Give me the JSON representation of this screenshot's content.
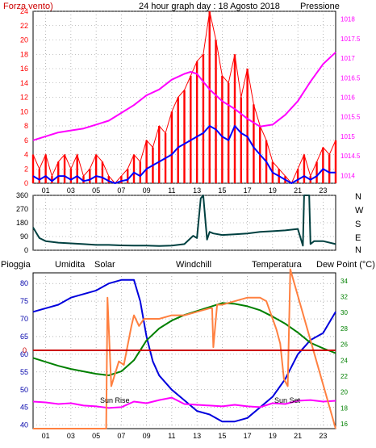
{
  "colors": {
    "wind": "#ff0000",
    "wind_gust": "#0000ff",
    "pressure": "#ff00ff",
    "wind_dir": "#004040",
    "rain": "#cc0000",
    "humidity": "#0000dd",
    "solar": "#ff8040",
    "windchill": "#008080",
    "temperature": "#008000",
    "dew_point": "#ff00ff",
    "frame": "#000000",
    "title": "#0000aa"
  },
  "top": {
    "title": "24 hour graph day : 18 Agosto 2018",
    "left_label": "Forza vento)",
    "right_label": "Pressione"
  },
  "bottom": {
    "label_rain": "Pioggia",
    "label_humidity": "Umidita",
    "label_solar": "Solar",
    "label_windchill": "Windchill",
    "label_temperature": "Temperatura",
    "label_dew_point": "Dew Point (°C)",
    "sunrise_label": "Sun Rise",
    "sunset_label": "Sun Set"
  },
  "chart_data": [
    {
      "type": "line",
      "name": "wind-pressure",
      "x_ticks": [
        "01",
        "03",
        "05",
        "07",
        "09",
        "11",
        "13",
        "15",
        "17",
        "19",
        "21",
        "23"
      ],
      "xlim": [
        0,
        24
      ],
      "y_left": {
        "label": "Forza vento)",
        "ticks": [
          "0",
          "2",
          "4",
          "6",
          "8",
          "10",
          "12",
          "14",
          "16",
          "18",
          "20",
          "22",
          "24"
        ],
        "range": [
          0,
          24
        ]
      },
      "y_right": {
        "label": "Pressione",
        "ticks": [
          "1014",
          "1014.5",
          "1015",
          "1015.5",
          "1016",
          "1016.5",
          "1017",
          "1017.5",
          "1018"
        ],
        "range": [
          1013.8,
          1018.2
        ]
      },
      "series": [
        {
          "name": "wind",
          "axis": "left",
          "style": "spikes",
          "x": [
            0,
            0.5,
            1,
            1.5,
            2,
            2.5,
            3,
            3.5,
            4,
            4.5,
            5,
            5.5,
            6,
            6.5,
            7,
            7.5,
            8,
            8.5,
            9,
            9.5,
            10,
            10.5,
            11,
            11.5,
            12,
            12.5,
            13,
            13.5,
            14,
            14.5,
            15,
            15.5,
            16,
            16.5,
            17,
            17.5,
            18,
            18.5,
            19,
            19.5,
            20,
            20.5,
            21,
            21.5,
            22,
            22.5,
            23,
            23.5,
            24
          ],
          "y": [
            4,
            2,
            4,
            1,
            3,
            4,
            2,
            4,
            1,
            2,
            4,
            3,
            1,
            0,
            1,
            2,
            4,
            3,
            6,
            5,
            8,
            7,
            10,
            12,
            13,
            15,
            17,
            18,
            24,
            20,
            15,
            14,
            18,
            12,
            16,
            11,
            8,
            6,
            3,
            2,
            1,
            0,
            2,
            4,
            1,
            3,
            5,
            4,
            6
          ]
        },
        {
          "name": "wind_gust",
          "axis": "left",
          "x": [
            0,
            0.5,
            1,
            1.5,
            2,
            2.5,
            3,
            3.5,
            4,
            4.5,
            5,
            5.5,
            6,
            6.5,
            7,
            7.5,
            8,
            8.5,
            9,
            9.5,
            10,
            10.5,
            11,
            11.5,
            12,
            12.5,
            13,
            13.5,
            14,
            14.5,
            15,
            15.5,
            16,
            16.5,
            17,
            17.5,
            18,
            18.5,
            19,
            19.5,
            20,
            20.5,
            21,
            21.5,
            22,
            22.5,
            23,
            23.5,
            24
          ],
          "y": [
            1,
            0.5,
            1,
            0.3,
            1,
            1,
            0.5,
            1,
            0.3,
            0.5,
            1,
            0.8,
            0.3,
            0,
            0.3,
            0.5,
            1.5,
            1,
            2,
            2.5,
            3,
            3.5,
            4,
            5,
            5.5,
            6,
            6.5,
            7,
            8,
            7.5,
            6.5,
            6,
            8,
            7,
            6.5,
            5,
            4,
            3,
            1.5,
            1,
            0.5,
            0,
            0.5,
            1,
            0.5,
            1,
            2,
            1.5,
            1.5
          ]
        },
        {
          "name": "pressure",
          "axis": "right",
          "x": [
            0,
            1,
            2,
            3,
            4,
            5,
            6,
            7,
            8,
            9,
            10,
            11,
            12,
            12.5,
            13,
            13.5,
            14,
            15,
            16,
            17,
            18,
            19,
            20,
            21,
            22,
            23,
            24
          ],
          "y": [
            1014.9,
            1015,
            1015.1,
            1015.15,
            1015.2,
            1015.3,
            1015.4,
            1015.6,
            1015.8,
            1016.05,
            1016.2,
            1016.45,
            1016.6,
            1016.65,
            1016.6,
            1016.4,
            1016.2,
            1015.9,
            1015.7,
            1015.45,
            1015.25,
            1015.3,
            1015.55,
            1015.9,
            1016.4,
            1016.85,
            1017.15
          ]
        }
      ]
    },
    {
      "type": "line",
      "name": "wind-direction",
      "xlim": [
        0,
        24
      ],
      "y_left": {
        "ticks": [
          "0",
          "90",
          "180",
          "270",
          "360"
        ],
        "range": [
          0,
          360
        ]
      },
      "y_right_labels": [
        "N",
        "W",
        "S",
        "E",
        "N"
      ],
      "series": [
        {
          "name": "wind_direction",
          "x": [
            0,
            0.5,
            1,
            2,
            3,
            4,
            5,
            6,
            7,
            8,
            9,
            10,
            11,
            12,
            12.7,
            13,
            13.3,
            13.5,
            13.8,
            14,
            14.3,
            15,
            16,
            17,
            18,
            19,
            20,
            21,
            21.4,
            21.5,
            21.9,
            22,
            22.3,
            23,
            24
          ],
          "y": [
            150,
            80,
            60,
            50,
            45,
            40,
            35,
            35,
            32,
            30,
            30,
            28,
            30,
            40,
            95,
            80,
            340,
            360,
            70,
            120,
            110,
            100,
            105,
            110,
            120,
            125,
            130,
            140,
            30,
            360,
            360,
            40,
            60,
            60,
            40
          ]
        }
      ]
    },
    {
      "type": "line",
      "name": "humidity-temperature",
      "x_ticks": [
        "01",
        "03",
        "05",
        "07",
        "09",
        "11",
        "13",
        "15",
        "17",
        "19",
        "21",
        "23"
      ],
      "xlim": [
        0,
        24
      ],
      "y_left": {
        "label": "Pioggia",
        "ticks": [
          "40",
          "45",
          "50",
          "55",
          "60",
          "65",
          "70",
          "75",
          "80"
        ],
        "range": [
          39,
          83
        ]
      },
      "y_right": {
        "label": "Dew Point (°C)",
        "ticks": [
          "16",
          "18",
          "20",
          "22",
          "24",
          "26",
          "28",
          "30",
          "32",
          "34"
        ],
        "range": [
          15.4,
          35
        ]
      },
      "rain_zero_label": "0",
      "series": [
        {
          "name": "humidity",
          "axis": "left",
          "x": [
            0,
            1,
            2,
            3,
            4,
            5,
            6,
            7,
            8,
            8.5,
            9,
            9.5,
            10,
            11,
            12,
            13,
            14,
            15,
            16,
            17,
            18,
            19,
            20,
            21,
            22,
            23,
            24
          ],
          "y": [
            72,
            73,
            74,
            76,
            77,
            78,
            80,
            81,
            81,
            75,
            65,
            58,
            54,
            50,
            47,
            44,
            43,
            41,
            41,
            42,
            45,
            48,
            53,
            60,
            64,
            66,
            72
          ]
        },
        {
          "name": "temperature",
          "axis": "right",
          "x": [
            0,
            1,
            2,
            3,
            4,
            5,
            6,
            7,
            8,
            9,
            10,
            11,
            12,
            13,
            14,
            15,
            16,
            17,
            18,
            19,
            20,
            21,
            22,
            23,
            24
          ],
          "y": [
            24.3,
            23.8,
            23.3,
            22.9,
            22.6,
            22.3,
            22.1,
            22.6,
            24,
            26.5,
            28,
            29,
            29.7,
            30.2,
            30.7,
            31.2,
            31.1,
            30.8,
            30.3,
            29.5,
            28.6,
            27.5,
            26.2,
            25.5,
            24.9
          ]
        },
        {
          "name": "dew_point",
          "axis": "right",
          "x": [
            0,
            1,
            2,
            3,
            4,
            5,
            6,
            7,
            8,
            9,
            10,
            11,
            12,
            13,
            14,
            15,
            16,
            17,
            18,
            19,
            20,
            21,
            22,
            23,
            24
          ],
          "y": [
            18.8,
            18.7,
            18.5,
            18.6,
            18.3,
            18.2,
            18,
            18.1,
            18.8,
            18.6,
            19,
            19.3,
            18.5,
            18.4,
            18.3,
            18.2,
            18.4,
            18.2,
            18.1,
            18.6,
            18.5,
            18.9,
            19,
            18.8,
            18.9
          ]
        },
        {
          "name": "solar",
          "axis": "left",
          "x": [
            0,
            5.8,
            5.9,
            6.2,
            6.8,
            7.2,
            7.8,
            8,
            8.4,
            8.8,
            9.5,
            10,
            11,
            12,
            13,
            14,
            14.2,
            14.3,
            14.6,
            15,
            16,
            17,
            18,
            18.5,
            19,
            19.3,
            19.6,
            19.9,
            20.2,
            20.4,
            24
          ],
          "y": [
            39,
            39,
            76,
            51,
            58,
            57,
            68,
            71,
            68,
            70,
            70,
            70,
            71,
            71,
            72,
            73,
            73,
            62,
            74,
            74,
            75,
            76,
            76,
            75,
            70,
            67,
            63,
            53,
            51,
            84,
            39
          ]
        }
      ],
      "annotations": [
        "Sun Rise",
        "Sun Set"
      ]
    }
  ]
}
